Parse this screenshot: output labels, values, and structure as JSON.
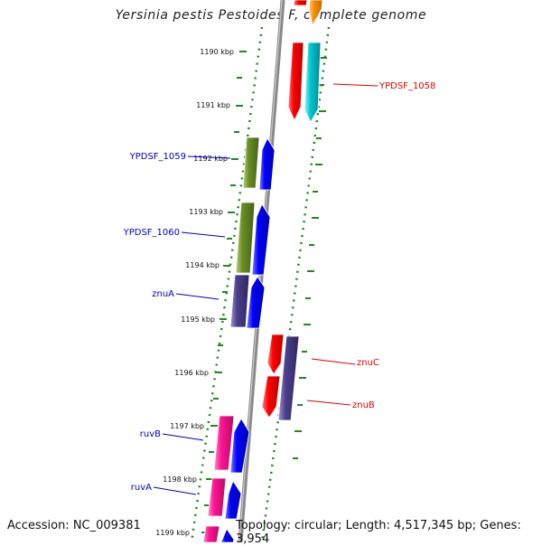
{
  "header": {
    "title": "Yersinia pestis Pestoides F, complete genome"
  },
  "footer": {
    "accession": "Accession: NC_009381",
    "topology": "Topology: circular; Length: 4,517,345 bp; Genes: 3,954"
  },
  "ruler": {
    "ticks": [
      {
        "label": "1190 kbp"
      },
      {
        "label": "1191 kbp"
      },
      {
        "label": "1192 kbp"
      },
      {
        "label": "1193 kbp"
      },
      {
        "label": "1194 kbp"
      },
      {
        "label": "1195 kbp"
      },
      {
        "label": "1196 kbp"
      },
      {
        "label": "1197 kbp"
      },
      {
        "label": "1198 kbp"
      },
      {
        "label": "1199 kbp"
      }
    ]
  },
  "gene_labels": [
    {
      "text": "YPDSF_1058",
      "color": "#dd0000"
    },
    {
      "text": "YPDSF_1059",
      "color": "#0000cc"
    },
    {
      "text": "YPDSF_1060",
      "color": "#0000cc"
    },
    {
      "text": "znuA",
      "color": "#0000cc"
    },
    {
      "text": "znuC",
      "color": "#dd0000"
    },
    {
      "text": "znuB",
      "color": "#dd0000"
    },
    {
      "text": "ruvB",
      "color": "#0000cc"
    },
    {
      "text": "ruvA",
      "color": "#0000cc"
    }
  ],
  "colors": {
    "backbone": "#8a8a8a",
    "ruler_tick": "#228822",
    "cds": [
      "#ff0000",
      "#00c8d0",
      "#6b8e23",
      "#0000ff",
      "#4b3f8c",
      "#ff1493",
      "#ff8c00"
    ]
  }
}
